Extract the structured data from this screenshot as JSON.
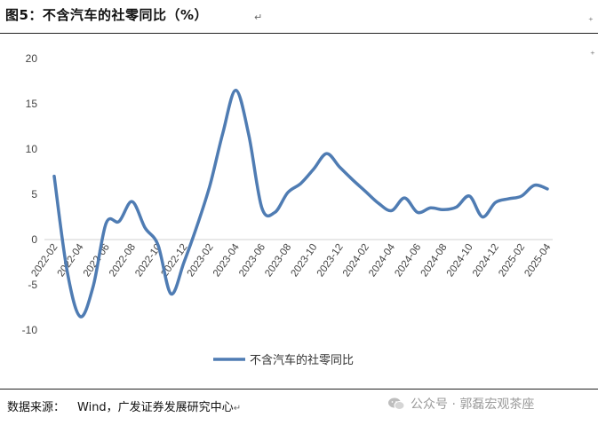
{
  "figure": {
    "title": "图5：不含汽车的社零同比（%）",
    "source_label": "数据来源：",
    "source_text": "Wind，广发证券发展研究中心",
    "watermark": "公众号 · 郭磊宏观茶座",
    "watermark_icon": "wechat-icon",
    "line_color": "#4f7cb3"
  },
  "chart_data": {
    "type": "line",
    "title": "",
    "xlabel": "",
    "ylabel": "",
    "ylim": [
      -10,
      20
    ],
    "yticks": [
      "20",
      "15",
      "10",
      "5",
      "0",
      "-5",
      "-10"
    ],
    "grid": false,
    "legend": "bottom-center",
    "x": [
      "2022-02",
      "2022-03",
      "2022-04",
      "2022-05",
      "2022-06",
      "2022-07",
      "2022-08",
      "2022-09",
      "2022-10",
      "2022-11",
      "2022-12",
      "2023-01",
      "2023-02",
      "2023-03",
      "2023-04",
      "2023-05",
      "2023-06",
      "2023-07",
      "2023-08",
      "2023-09",
      "2023-10",
      "2023-11",
      "2023-12",
      "2024-01",
      "2024-02",
      "2024-03",
      "2024-04",
      "2024-05",
      "2024-06",
      "2024-07",
      "2024-08",
      "2024-09",
      "2024-10",
      "2024-11",
      "2024-12",
      "2025-01",
      "2025-02",
      "2025-03",
      "2025-04"
    ],
    "xtick_labels": [
      "2022-02",
      "2022-04",
      "2022-06",
      "2022-08",
      "2022-10",
      "2022-12",
      "2023-02",
      "2023-04",
      "2023-06",
      "2023-08",
      "2023-10",
      "2023-12",
      "2024-02",
      "2024-04",
      "2024-06",
      "2024-08",
      "2024-10",
      "2024-12",
      "2025-02",
      "2025-04"
    ],
    "series": [
      {
        "name": "不含汽车的社零同比",
        "values": [
          7.0,
          -3.5,
          -8.5,
          -5.2,
          1.8,
          2.0,
          4.2,
          1.3,
          -0.6,
          -6.0,
          -2.5,
          1.5,
          6.0,
          11.8,
          16.5,
          11.5,
          3.5,
          3.0,
          5.2,
          6.2,
          7.8,
          9.5,
          8.0,
          6.6,
          5.3,
          4.0,
          3.2,
          4.6,
          3.0,
          3.5,
          3.3,
          3.6,
          4.8,
          2.5,
          4.1,
          4.5,
          4.8,
          6.0,
          5.6
        ]
      }
    ]
  }
}
